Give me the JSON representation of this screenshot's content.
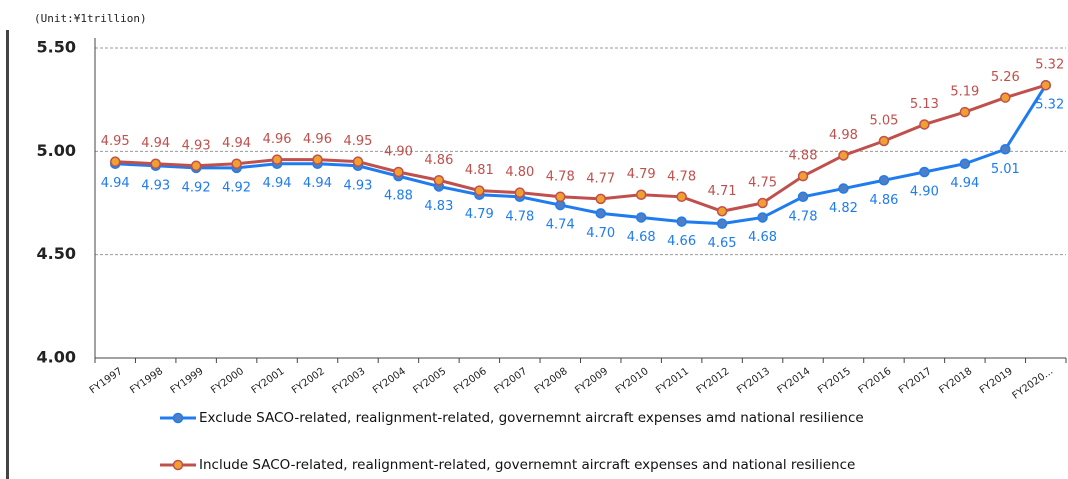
{
  "chart_data": {
    "type": "line",
    "subtitle": "(Unit:¥1trillion)",
    "categories": [
      "FY1997",
      "FY1998",
      "FY1999",
      "FY2000",
      "FY2001",
      "FY2002",
      "FY2003",
      "FY2004",
      "FY2005",
      "FY2006",
      "FY2007",
      "FY2008",
      "FY2009",
      "FY2010",
      "FY2011",
      "FY2012",
      "FY2013",
      "FY2014",
      "FY2015",
      "FY2016",
      "FY2017",
      "FY2018",
      "FY2019",
      "FY2020..."
    ],
    "series": [
      {
        "name": "Exclude SACO-related, realignment-related, governemnt aircraft expenses amd national resilience",
        "color": "#1f7cf0",
        "marker_color": "#4f7fc2",
        "values": [
          4.94,
          4.93,
          4.92,
          4.92,
          4.94,
          4.94,
          4.93,
          4.88,
          4.83,
          4.79,
          4.78,
          4.74,
          4.7,
          4.68,
          4.66,
          4.65,
          4.68,
          4.78,
          4.82,
          4.86,
          4.9,
          4.94,
          5.01,
          5.32
        ],
        "value_labels": [
          "4.94",
          "4.93",
          "4.92",
          "4.92",
          "4.94",
          "4.94",
          "4.93",
          "4.88",
          "4.83",
          "4.79",
          "4.78",
          "4.74",
          "4.70",
          "4.68",
          "4.66",
          "4.65",
          "4.68",
          "4.78",
          "4.82",
          "4.86",
          "4.90",
          "4.94",
          "5.01",
          "5.32"
        ]
      },
      {
        "name": "Include SACO-related, realignment-related, governemnt aircraft expenses and national resilience",
        "color": "#c0504d",
        "marker_color": "#f0a030",
        "values": [
          4.95,
          4.94,
          4.93,
          4.94,
          4.96,
          4.96,
          4.95,
          4.9,
          4.86,
          4.81,
          4.8,
          4.78,
          4.77,
          4.79,
          4.78,
          4.71,
          4.75,
          4.88,
          4.98,
          5.05,
          5.13,
          5.19,
          5.26,
          5.32
        ],
        "value_labels": [
          "4.95",
          "4.94",
          "4.93",
          "4.94",
          "4.96",
          "4.96",
          "4.95",
          "4.90",
          "4.86",
          "4.81",
          "4.80",
          "4.78",
          "4.77",
          "4.79",
          "4.78",
          "4.71",
          "4.75",
          "4.88",
          "4.98",
          "5.05",
          "5.13",
          "5.19",
          "5.26",
          "5.32"
        ]
      }
    ],
    "ylim": [
      4.0,
      5.5
    ],
    "yticks": [
      {
        "value": 4.0,
        "label": "4.00"
      },
      {
        "value": 4.5,
        "label": "4.50"
      },
      {
        "value": 5.0,
        "label": "5.00"
      },
      {
        "value": 5.5,
        "label": "5.50"
      }
    ],
    "grid": true
  }
}
